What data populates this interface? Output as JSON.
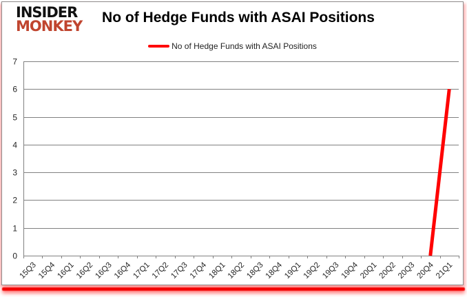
{
  "header": {
    "logo_line1": "INSIDER",
    "logo_line2": "MONKEY",
    "title": "No of Hedge Funds with ASAI Positions"
  },
  "legend": {
    "label": "No of Hedge Funds with ASAI Positions",
    "swatch_color": "#ff0000"
  },
  "colors": {
    "series_line": "#ff0000",
    "grid": "#808080",
    "axis": "#808080",
    "tick_label": "#262626",
    "logo_accent": "#c0452f",
    "bottom_border": "#f30000"
  },
  "chart_data": {
    "type": "line",
    "title": "No of Hedge Funds with ASAI Positions",
    "categories": [
      "15Q3",
      "15Q4",
      "16Q1",
      "16Q2",
      "16Q3",
      "16Q4",
      "17Q1",
      "17Q2",
      "17Q3",
      "17Q4",
      "18Q1",
      "18Q2",
      "18Q3",
      "18Q4",
      "19Q1",
      "19Q2",
      "19Q3",
      "19Q4",
      "20Q1",
      "20Q2",
      "20Q3",
      "20Q4",
      "21Q1"
    ],
    "series": [
      {
        "name": "No of Hedge Funds with ASAI Positions",
        "color": "#ff0000",
        "values": [
          null,
          null,
          null,
          null,
          null,
          null,
          null,
          null,
          null,
          null,
          null,
          null,
          null,
          null,
          null,
          null,
          null,
          null,
          null,
          null,
          null,
          0,
          6
        ]
      }
    ],
    "ylim": [
      0,
      7
    ],
    "ytick_step": 1,
    "grid": true,
    "legend_position": "top"
  }
}
